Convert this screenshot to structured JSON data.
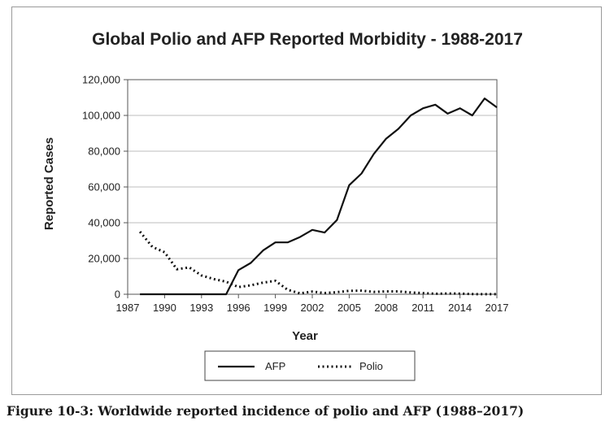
{
  "caption": "Figure 10-3: Worldwide reported incidence of polio and AFP (1988–2017)",
  "chart_data": {
    "type": "line",
    "title": "Global Polio and AFP Reported Morbidity - 1988-2017",
    "xlabel": "Year",
    "ylabel": "Reported Cases",
    "xlim": [
      1987,
      2017
    ],
    "ylim": [
      0,
      120000
    ],
    "x_ticks": [
      1987,
      1990,
      1993,
      1996,
      1999,
      2002,
      2005,
      2008,
      2011,
      2014,
      2017
    ],
    "y_ticks": [
      0,
      20000,
      40000,
      60000,
      80000,
      100000,
      120000
    ],
    "y_tick_labels": [
      "0",
      "20,000",
      "40,000",
      "60,000",
      "80,000",
      "100,000",
      "120,000"
    ],
    "grid": "horizontal",
    "legend_position": "bottom",
    "x": [
      1988,
      1989,
      1990,
      1991,
      1992,
      1993,
      1994,
      1995,
      1996,
      1997,
      1998,
      1999,
      2000,
      2001,
      2002,
      2003,
      2004,
      2005,
      2006,
      2007,
      2008,
      2009,
      2010,
      2011,
      2012,
      2013,
      2014,
      2015,
      2016,
      2017
    ],
    "series": [
      {
        "name": "AFP",
        "style": "solid",
        "color": "#111111",
        "values": [
          0,
          0,
          0,
          0,
          0,
          0,
          0,
          0,
          13500,
          17500,
          24500,
          29000,
          29000,
          32000,
          36000,
          34500,
          41500,
          61000,
          67500,
          78500,
          87000,
          92500,
          100000,
          104000,
          106000,
          101000,
          104000,
          100000,
          109500,
          104500
        ]
      },
      {
        "name": "Polio",
        "style": "dotted",
        "color": "#111111",
        "values": [
          35000,
          26500,
          23500,
          14000,
          15000,
          10500,
          8500,
          7000,
          4000,
          5000,
          6500,
          7500,
          2500,
          500,
          1500,
          700,
          1200,
          1900,
          2000,
          1300,
          1600,
          1600,
          1000,
          650,
          250,
          400,
          350,
          75,
          40,
          25
        ]
      }
    ]
  }
}
